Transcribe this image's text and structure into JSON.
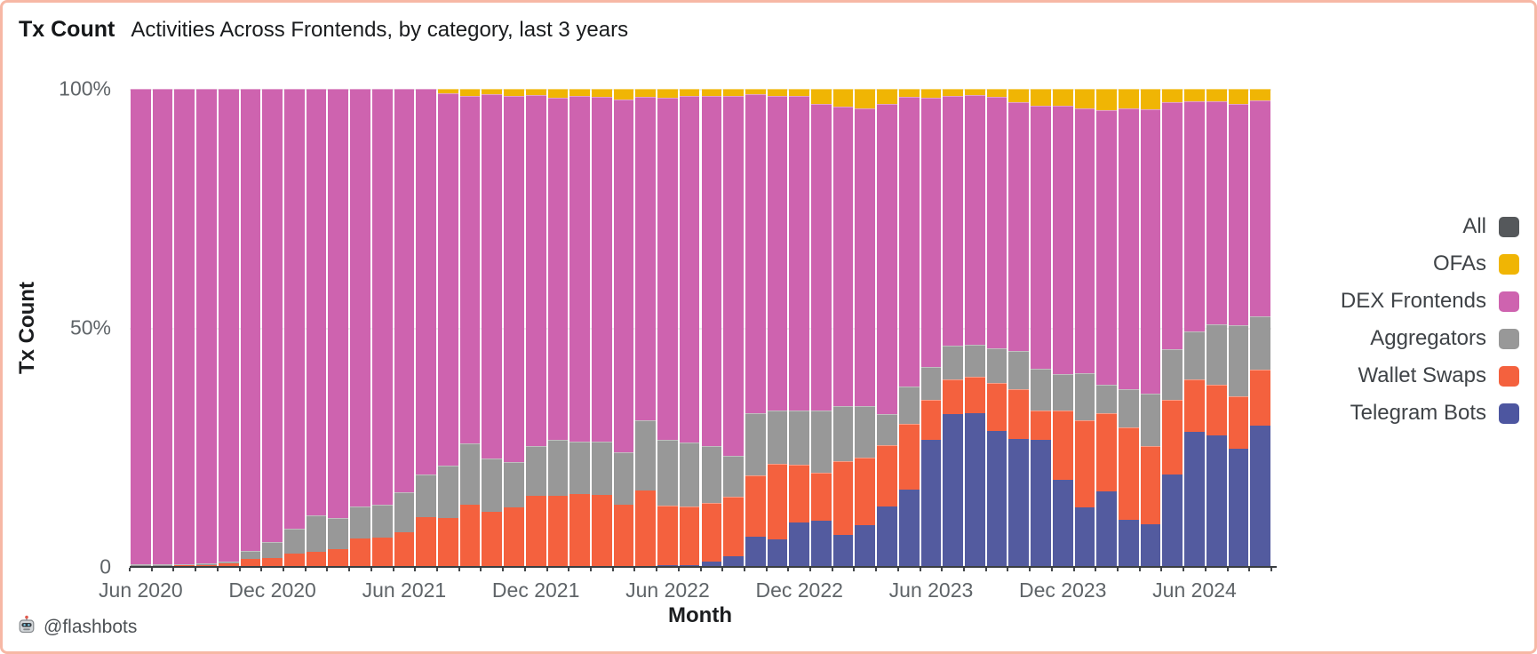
{
  "header": {
    "title": "Tx Count",
    "subtitle": "Activities Across Frontends, by category, last 3 years"
  },
  "footer": {
    "icon": "robot-icon",
    "handle": "@flashbots"
  },
  "legend": {
    "items": [
      {
        "label": "All",
        "color": "#55585b"
      },
      {
        "label": "OFAs",
        "color": "#f0b504"
      },
      {
        "label": "DEX Frontends",
        "color": "#ce63af"
      },
      {
        "label": "Aggregators",
        "color": "#989898"
      },
      {
        "label": "Wallet Swaps",
        "color": "#f4613e"
      },
      {
        "label": "Telegram Bots",
        "color": "#4d56a0"
      }
    ]
  },
  "chart_data": {
    "type": "bar",
    "variant": "100-percent-stacked",
    "title": "Tx Count",
    "subtitle": "Activities Across Frontends, by category, last 3 years",
    "xlabel": "Month",
    "ylabel": "Tx Count",
    "ylim": [
      0,
      100
    ],
    "grid": "horizontal-faint",
    "legend_position": "right",
    "y_ticks": [
      {
        "label": "100%",
        "pct": 100
      },
      {
        "label": "50%",
        "pct": 50
      },
      {
        "label": "0",
        "pct": 0
      }
    ],
    "x_ticks": [
      {
        "label": "Jun 2020",
        "month_index": 0
      },
      {
        "label": "Dec 2020",
        "month_index": 6
      },
      {
        "label": "Jun 2021",
        "month_index": 12
      },
      {
        "label": "Dec 2021",
        "month_index": 18
      },
      {
        "label": "Jun 2022",
        "month_index": 24
      },
      {
        "label": "Dec 2022",
        "month_index": 30
      },
      {
        "label": "Jun 2023",
        "month_index": 36
      },
      {
        "label": "Dec 2023",
        "month_index": 42
      },
      {
        "label": "Jun 2024",
        "month_index": 48
      }
    ],
    "categories": [
      "Jun 2020",
      "Jul 2020",
      "Aug 2020",
      "Sep 2020",
      "Oct 2020",
      "Nov 2020",
      "Dec 2020",
      "Jan 2021",
      "Feb 2021",
      "Mar 2021",
      "Apr 2021",
      "May 2021",
      "Jun 2021",
      "Jul 2021",
      "Aug 2021",
      "Sep 2021",
      "Oct 2021",
      "Nov 2021",
      "Dec 2021",
      "Jan 2022",
      "Feb 2022",
      "Mar 2022",
      "Apr 2022",
      "May 2022",
      "Jun 2022",
      "Jul 2022",
      "Aug 2022",
      "Sep 2022",
      "Oct 2022",
      "Nov 2022",
      "Dec 2022",
      "Jan 2023",
      "Feb 2023",
      "Mar 2023",
      "Apr 2023",
      "May 2023",
      "Jun 2023",
      "Jul 2023",
      "Aug 2023",
      "Sep 2023",
      "Oct 2023",
      "Nov 2023",
      "Dec 2023",
      "Jan 2024",
      "Feb 2024",
      "Mar 2024",
      "Apr 2024",
      "May 2024",
      "Jun 2024",
      "Jul 2024",
      "Aug 2024",
      "Sep 2024"
    ],
    "series": [
      {
        "name": "Telegram Bots",
        "color": "#535b9f",
        "values": [
          0,
          0,
          0,
          0,
          0,
          0,
          0,
          0,
          0,
          0,
          0,
          0,
          0,
          0,
          0,
          0,
          0,
          0,
          0,
          0,
          0,
          0,
          0,
          0,
          0.3,
          0.4,
          1.2,
          2.3,
          6.3,
          5.8,
          9.3,
          9.7,
          6.7,
          8.7,
          12.7,
          16.1,
          26.6,
          31.9,
          32.1,
          28.5,
          26.8,
          26.6,
          18.2,
          12.5,
          15.8,
          9.9,
          9.0,
          19.3,
          28.2,
          27.6,
          24.8,
          29.6
        ]
      },
      {
        "name": "Wallet Swaps",
        "color": "#f4613e",
        "values": [
          0.2,
          0.2,
          0.3,
          0.3,
          0.8,
          1.7,
          1.9,
          2.8,
          3.2,
          3.7,
          5.9,
          6.2,
          7.3,
          10.5,
          10.2,
          13.1,
          11.6,
          12.5,
          14.9,
          14.9,
          15.3,
          15.0,
          13.1,
          15.9,
          12.5,
          12.3,
          12.1,
          12.4,
          12.9,
          15.7,
          12.1,
          10.1,
          15.4,
          14.1,
          12.7,
          13.9,
          8.4,
          7.3,
          7.7,
          9.9,
          10.4,
          6.1,
          14.5,
          18.2,
          16.3,
          19.3,
          16.3,
          15.7,
          11.1,
          10.5,
          10.8,
          11.6
        ]
      },
      {
        "name": "Aggregators",
        "color": "#989898",
        "values": [
          0.3,
          0.3,
          0.3,
          0.4,
          0.4,
          1.7,
          3.4,
          5.2,
          7.5,
          6.5,
          6.8,
          6.8,
          8.4,
          8.8,
          10.9,
          12.7,
          11.1,
          9.5,
          10.3,
          11.7,
          10.9,
          11.2,
          10.8,
          14.8,
          13.8,
          13.3,
          12.0,
          8.5,
          13.0,
          11.2,
          11.4,
          12.9,
          11.5,
          10.8,
          6.5,
          7.8,
          6.8,
          7.1,
          6.7,
          7.3,
          7.9,
          8.8,
          7.6,
          9.8,
          6.0,
          8.0,
          10.9,
          10.5,
          10.0,
          12.7,
          14.9,
          11.2
        ]
      },
      {
        "name": "DEX Frontends",
        "color": "#ce63af",
        "values": [
          99.5,
          99.5,
          99.4,
          99.3,
          98.8,
          96.6,
          94.7,
          92.0,
          89.3,
          89.8,
          87.3,
          87.0,
          84.3,
          80.7,
          78.0,
          72.7,
          76.1,
          76.6,
          73.5,
          71.5,
          72.4,
          72.1,
          73.9,
          67.6,
          71.5,
          72.5,
          73.3,
          75.3,
          66.6,
          65.9,
          65.7,
          64.2,
          62.6,
          62.3,
          64.9,
          60.5,
          56.3,
          52.3,
          52.2,
          52.6,
          52.1,
          54.9,
          56.2,
          55.5,
          57.4,
          58.8,
          59.6,
          51.8,
          48.1,
          46.6,
          46.4,
          45.2
        ]
      },
      {
        "name": "OFAs",
        "color": "#f0b504",
        "values": [
          0,
          0,
          0,
          0,
          0,
          0,
          0,
          0,
          0,
          0,
          0,
          0,
          0,
          0,
          0.9,
          1.5,
          1.2,
          1.4,
          1.3,
          1.9,
          1.4,
          1.7,
          2.2,
          1.7,
          1.9,
          1.5,
          1.4,
          1.5,
          1.2,
          1.4,
          1.5,
          3.1,
          3.8,
          4.1,
          3.2,
          1.7,
          1.9,
          1.4,
          1.3,
          1.7,
          2.8,
          3.6,
          3.5,
          4.0,
          4.5,
          4.0,
          4.2,
          2.7,
          2.6,
          2.6,
          3.1,
          2.4
        ]
      }
    ],
    "series_not_plotted": [
      {
        "name": "All",
        "color": "#55585b"
      }
    ]
  }
}
